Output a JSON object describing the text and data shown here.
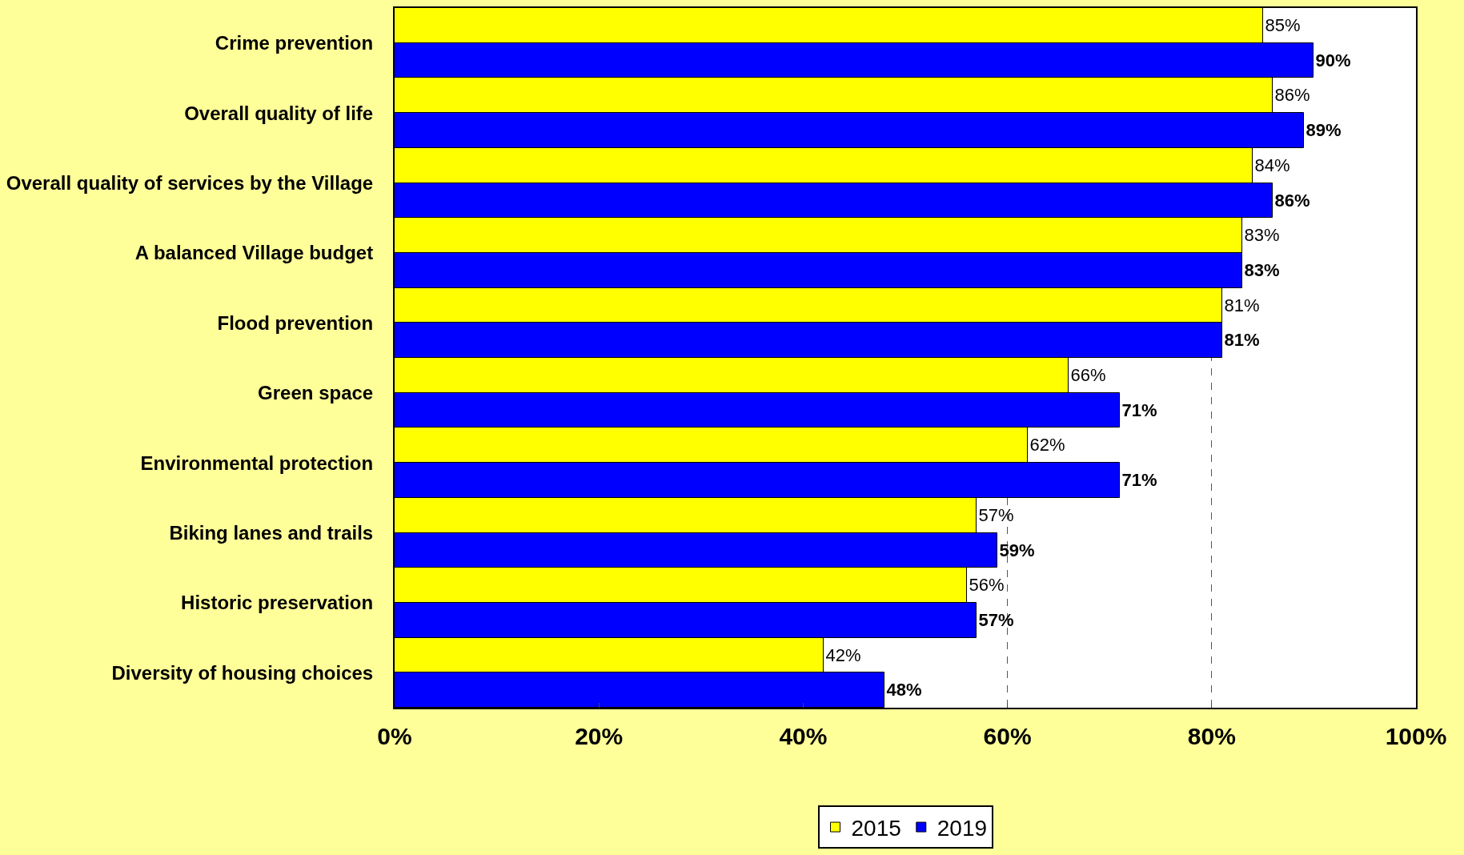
{
  "chart_data": {
    "type": "bar",
    "orientation": "horizontal",
    "categories": [
      "Crime prevention",
      "Overall quality of life",
      "Overall quality of services by the Village",
      "A balanced Village budget",
      "Flood prevention",
      "Green space",
      "Environmental protection",
      "Biking lanes and trails",
      "Historic preservation",
      "Diversity of housing choices"
    ],
    "series": [
      {
        "name": "2015",
        "color": "#ffff00",
        "values": [
          85,
          86,
          84,
          83,
          81,
          66,
          62,
          57,
          56,
          42
        ],
        "value_labels": [
          "85%",
          "86%",
          "84%",
          "83%",
          "81%",
          "66%",
          "62%",
          "57%",
          "56%",
          "42%"
        ]
      },
      {
        "name": "2019",
        "color": "#0000ff",
        "values": [
          90,
          89,
          86,
          83,
          81,
          71,
          71,
          59,
          57,
          48
        ],
        "value_labels": [
          "90%",
          "89%",
          "86%",
          "83%",
          "81%",
          "71%",
          "71%",
          "59%",
          "57%",
          "48%"
        ]
      }
    ],
    "xlim": [
      0,
      100
    ],
    "xticks": [
      {
        "value": 0,
        "label": "0%"
      },
      {
        "value": 20,
        "label": "20%"
      },
      {
        "value": 40,
        "label": "40%"
      },
      {
        "value": 60,
        "label": "60%"
      },
      {
        "value": 80,
        "label": "80%"
      },
      {
        "value": 100,
        "label": "100%"
      }
    ],
    "grid": "x",
    "legend": "bottom"
  }
}
